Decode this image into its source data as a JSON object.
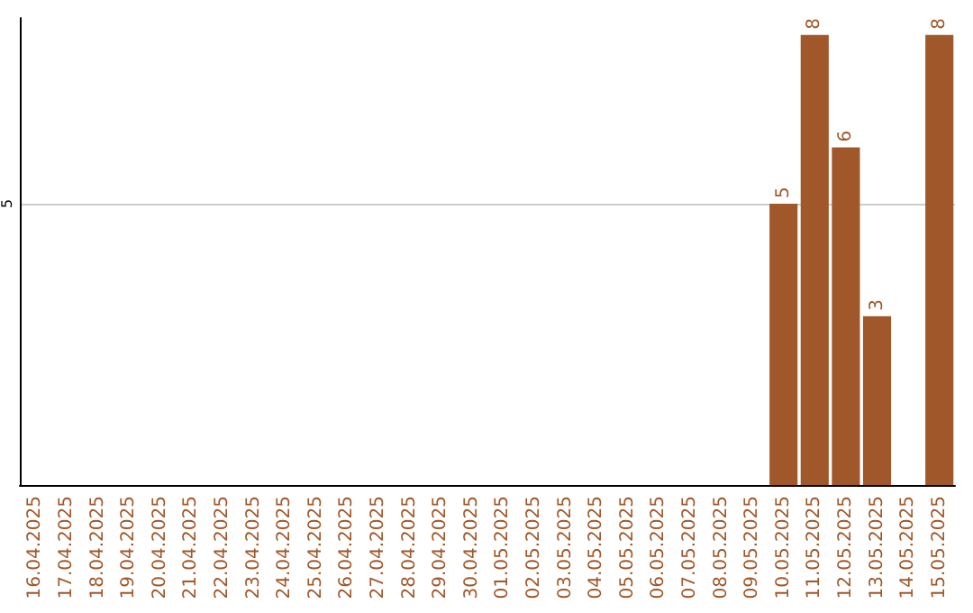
{
  "chart_data": {
    "type": "bar",
    "categories": [
      "16.04.2025",
      "17.04.2025",
      "18.04.2025",
      "19.04.2025",
      "20.04.2025",
      "21.04.2025",
      "22.04.2025",
      "23.04.2025",
      "24.04.2025",
      "25.04.2025",
      "26.04.2025",
      "27.04.2025",
      "28.04.2025",
      "29.04.2025",
      "30.04.2025",
      "01.05.2025",
      "02.05.2025",
      "03.05.2025",
      "04.05.2025",
      "05.05.2025",
      "06.05.2025",
      "07.05.2025",
      "08.05.2025",
      "09.05.2025",
      "10.05.2025",
      "11.05.2025",
      "12.05.2025",
      "13.05.2025",
      "14.05.2025",
      "15.05.2025"
    ],
    "values": [
      null,
      null,
      null,
      null,
      null,
      null,
      null,
      null,
      null,
      null,
      null,
      null,
      null,
      null,
      null,
      null,
      null,
      null,
      null,
      null,
      null,
      null,
      null,
      null,
      5,
      8,
      6,
      3,
      null,
      8
    ],
    "color": "#a0582a",
    "ylim": [
      0,
      8.3
    ],
    "yticks": [
      5
    ],
    "grid": "y",
    "data_labels": true
  }
}
